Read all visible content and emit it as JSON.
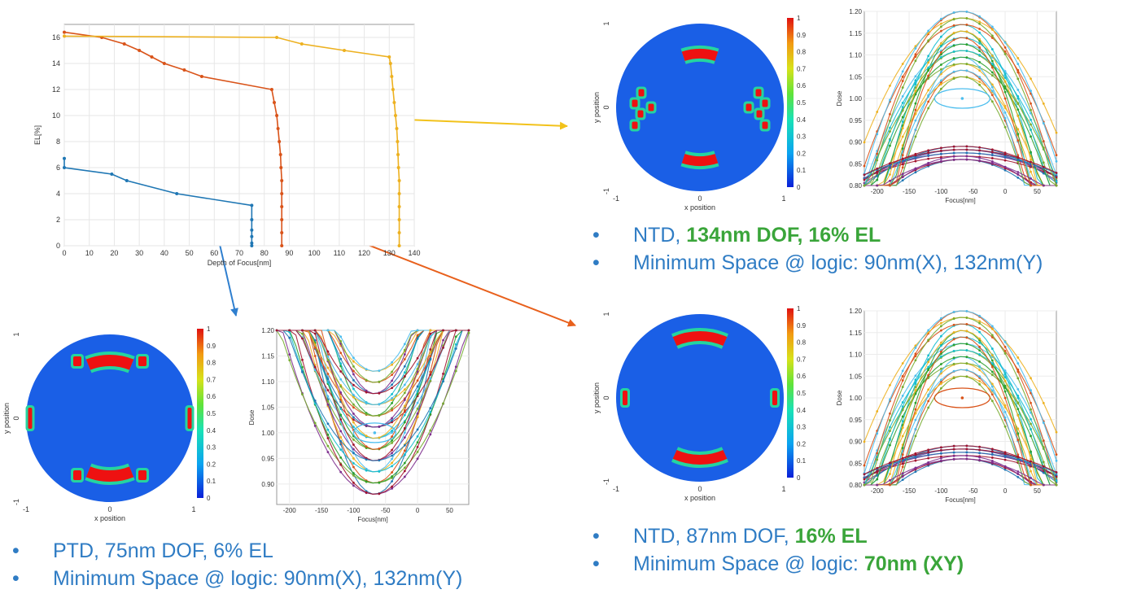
{
  "colors": {
    "bullet_text": "#2f7cc4",
    "highlight": "#3aa53a",
    "series_ptd": "#1f77b4",
    "series_ntd87": "#d95319",
    "series_ntd134": "#edb120",
    "arrow_yellow": "#f2c21b",
    "arrow_orange": "#e8601c",
    "arrow_blue": "#2f7fcf",
    "pupil_background": "#1a5fe6",
    "pole": "#ee1111"
  },
  "chart_data": [
    {
      "type": "line",
      "id": "el-vs-dof",
      "xlabel": "Depth of Focus[nm]",
      "ylabel": "EL[%]",
      "xlim": [
        0,
        140
      ],
      "ylim": [
        0,
        17
      ],
      "xticks": [
        0,
        10,
        20,
        30,
        40,
        50,
        60,
        70,
        80,
        90,
        100,
        110,
        120,
        130,
        140
      ],
      "yticks": [
        0,
        2,
        4,
        6,
        8,
        10,
        12,
        14,
        16
      ],
      "grid": true,
      "series": [
        {
          "color": "#1f77b4",
          "points": [
            [
              0,
              6.7
            ],
            [
              0,
              6.0
            ],
            [
              19,
              5.5
            ],
            [
              25,
              5.0
            ],
            [
              45,
              4.0
            ],
            [
              75,
              3.1
            ],
            [
              75,
              2.0
            ],
            [
              75,
              1.2
            ],
            [
              75,
              0.7
            ],
            [
              75,
              0.2
            ],
            [
              75,
              0
            ]
          ]
        },
        {
          "color": "#d95319",
          "points": [
            [
              0,
              16.4
            ],
            [
              15,
              16.0
            ],
            [
              24,
              15.5
            ],
            [
              30,
              15.0
            ],
            [
              35,
              14.5
            ],
            [
              40,
              14.0
            ],
            [
              48,
              13.5
            ],
            [
              55,
              13.0
            ],
            [
              83,
              12.0
            ],
            [
              84,
              11.0
            ],
            [
              85,
              10.0
            ],
            [
              85.5,
              9.0
            ],
            [
              86,
              8.0
            ],
            [
              86.5,
              7.0
            ],
            [
              86.7,
              6.0
            ],
            [
              87,
              5.0
            ],
            [
              87,
              4.0
            ],
            [
              87,
              3.0
            ],
            [
              87,
              2.0
            ],
            [
              87,
              1.0
            ],
            [
              87,
              0
            ]
          ]
        },
        {
          "color": "#edb120",
          "points": [
            [
              0,
              16.1
            ],
            [
              85,
              16.0
            ],
            [
              95,
              15.5
            ],
            [
              112,
              15.0
            ],
            [
              130,
              14.5
            ],
            [
              130.5,
              14.0
            ],
            [
              131,
              13.0
            ],
            [
              131.5,
              12.0
            ],
            [
              132,
              11.0
            ],
            [
              132.5,
              10.0
            ],
            [
              133,
              9.0
            ],
            [
              133.3,
              8.0
            ],
            [
              133.5,
              7.0
            ],
            [
              133.7,
              6.0
            ],
            [
              134,
              5.0
            ],
            [
              134,
              4.0
            ],
            [
              134,
              3.0
            ],
            [
              134,
              2.0
            ],
            [
              134,
              1.0
            ],
            [
              134,
              0
            ]
          ]
        }
      ]
    },
    {
      "type": "heatmap",
      "id": "pupil-ntd134",
      "xlabel": "x position",
      "ylabel": "y position",
      "xticks": [
        "-1",
        "0",
        "1"
      ],
      "yticks": [
        "1",
        "0",
        "-1"
      ],
      "colorbar": [
        "1",
        "0.9",
        "0.8",
        "0.7",
        "0.6",
        "0.5",
        "0.4",
        "0.3",
        "0.2",
        "0.1",
        "0"
      ]
    },
    {
      "type": "line",
      "id": "dose-ntd134",
      "xlabel": "Focus[nm]",
      "ylabel": "Dose",
      "xlim": [
        -220,
        80
      ],
      "ylim": [
        0.8,
        1.2
      ],
      "xticks": [
        -200,
        -150,
        -100,
        -50,
        0,
        50
      ],
      "yticks": [
        "0.80",
        "0.85",
        "0.90",
        "0.95",
        "1.00",
        "1.05",
        "1.10",
        "1.15",
        "1.20"
      ],
      "ellipse_center": [
        -67,
        1.0
      ],
      "shape": "arch"
    },
    {
      "type": "heatmap",
      "id": "pupil-ntd87",
      "xlabel": "x position",
      "ylabel": "y position",
      "xticks": [
        "-1",
        "0",
        "1"
      ],
      "yticks": [
        "1",
        "0",
        "-1"
      ],
      "colorbar": [
        "1",
        "0.9",
        "0.8",
        "0.7",
        "0.6",
        "0.5",
        "0.4",
        "0.3",
        "0.2",
        "0.1",
        "0"
      ]
    },
    {
      "type": "line",
      "id": "dose-ntd87",
      "xlabel": "Focus[nm]",
      "ylabel": "Dose",
      "xlim": [
        -220,
        80
      ],
      "ylim": [
        0.8,
        1.2
      ],
      "xticks": [
        -200,
        -150,
        -100,
        -50,
        0,
        50
      ],
      "yticks": [
        "0.80",
        "0.85",
        "0.90",
        "0.95",
        "1.00",
        "1.05",
        "1.10",
        "1.15",
        "1.20"
      ],
      "ellipse_center": [
        -67,
        1.0
      ],
      "shape": "arch"
    },
    {
      "type": "heatmap",
      "id": "pupil-ptd",
      "xlabel": "x position",
      "ylabel": "y position",
      "xticks": [
        "-1",
        "0",
        "1"
      ],
      "yticks": [
        "1",
        "0",
        "-1"
      ],
      "colorbar": [
        "1",
        "0.9",
        "0.8",
        "0.7",
        "0.6",
        "0.5",
        "0.4",
        "0.3",
        "0.2",
        "0.1",
        "0"
      ]
    },
    {
      "type": "line",
      "id": "dose-ptd",
      "xlabel": "Focus[nm]",
      "ylabel": "Dose",
      "xlim": [
        -220,
        80
      ],
      "ylim": [
        0.86,
        1.2
      ],
      "xticks": [
        -200,
        -150,
        -100,
        -50,
        0,
        50
      ],
      "yticks": [
        "0.90",
        "0.95",
        "1.00",
        "1.05",
        "1.10",
        "1.15",
        "1.20"
      ],
      "ellipse_center": [
        -67,
        1.0
      ],
      "shape": "valley"
    }
  ],
  "bullets": {
    "ntd134": [
      {
        "marker": "•",
        "parts": [
          {
            "text": "NTD, "
          },
          {
            "text": "134nm DOF, 16% EL",
            "highlight": true
          }
        ]
      },
      {
        "marker": "•",
        "parts": [
          {
            "text": "Minimum Space @ logic: 90nm(X), 132nm(Y)"
          }
        ]
      }
    ],
    "ntd87": [
      {
        "marker": "•",
        "parts": [
          {
            "text": "NTD, 87nm DOF, "
          },
          {
            "text": "16% EL",
            "highlight": true
          }
        ]
      },
      {
        "marker": "•",
        "parts": [
          {
            "text": "Minimum Space @ logic: "
          },
          {
            "text": "70nm (XY)",
            "highlight": true
          }
        ]
      }
    ],
    "ptd": [
      {
        "marker": "•",
        "parts": [
          {
            "text": "PTD, 75nm DOF, 6% EL"
          }
        ]
      },
      {
        "marker": "•",
        "parts": [
          {
            "text": "Minimum Space @ logic: 90nm(X), 132nm(Y)"
          }
        ]
      }
    ]
  }
}
